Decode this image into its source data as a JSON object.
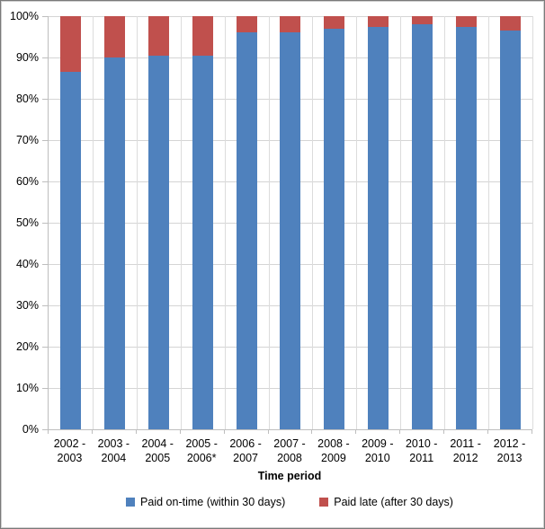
{
  "chart": {
    "frame_border_color": "#7A7A7A",
    "background": "#FFFFFF",
    "gridline_color": "#D5D5D5",
    "axis_line_color": "#BEBEBE",
    "colors": {
      "on_time": "#4F81BD",
      "late": "#C0504D"
    },
    "legend": [
      {
        "label": "Paid on-time (within 30 days)",
        "color": "#4F81BD"
      },
      {
        "label": "Paid late (after 30 days)",
        "color": "#C0504D"
      }
    ]
  },
  "chart_data": {
    "type": "bar",
    "stacked": true,
    "percent_stacked": true,
    "title": "",
    "xlabel": "Time period",
    "ylabel": "",
    "ylim": [
      0,
      100
    ],
    "yticks": [
      "0%",
      "10%",
      "20%",
      "30%",
      "40%",
      "50%",
      "60%",
      "70%",
      "80%",
      "90%",
      "100%"
    ],
    "grid": "horizontal-major-and-category-boundaries",
    "legend_position": "bottom",
    "categories": [
      "2002 - 2003",
      "2003 - 2004",
      "2004 - 2005",
      "2005 - 2006*",
      "2006 - 2007",
      "2007 - 2008",
      "2008 - 2009",
      "2009 - 2010",
      "2010 - 2011",
      "2011 - 2012",
      "2012 - 2013"
    ],
    "series": [
      {
        "name": "Paid on-time (within 30 days)",
        "color": "#4F81BD",
        "values": [
          86.5,
          90,
          90.5,
          90.5,
          96,
          96,
          97,
          97.5,
          98,
          97.5,
          96.5
        ]
      },
      {
        "name": "Paid late (after 30 days)",
        "color": "#C0504D",
        "values": [
          13.5,
          10,
          9.5,
          9.5,
          4,
          4,
          3,
          2.5,
          2,
          2.5,
          3.5
        ]
      }
    ]
  }
}
